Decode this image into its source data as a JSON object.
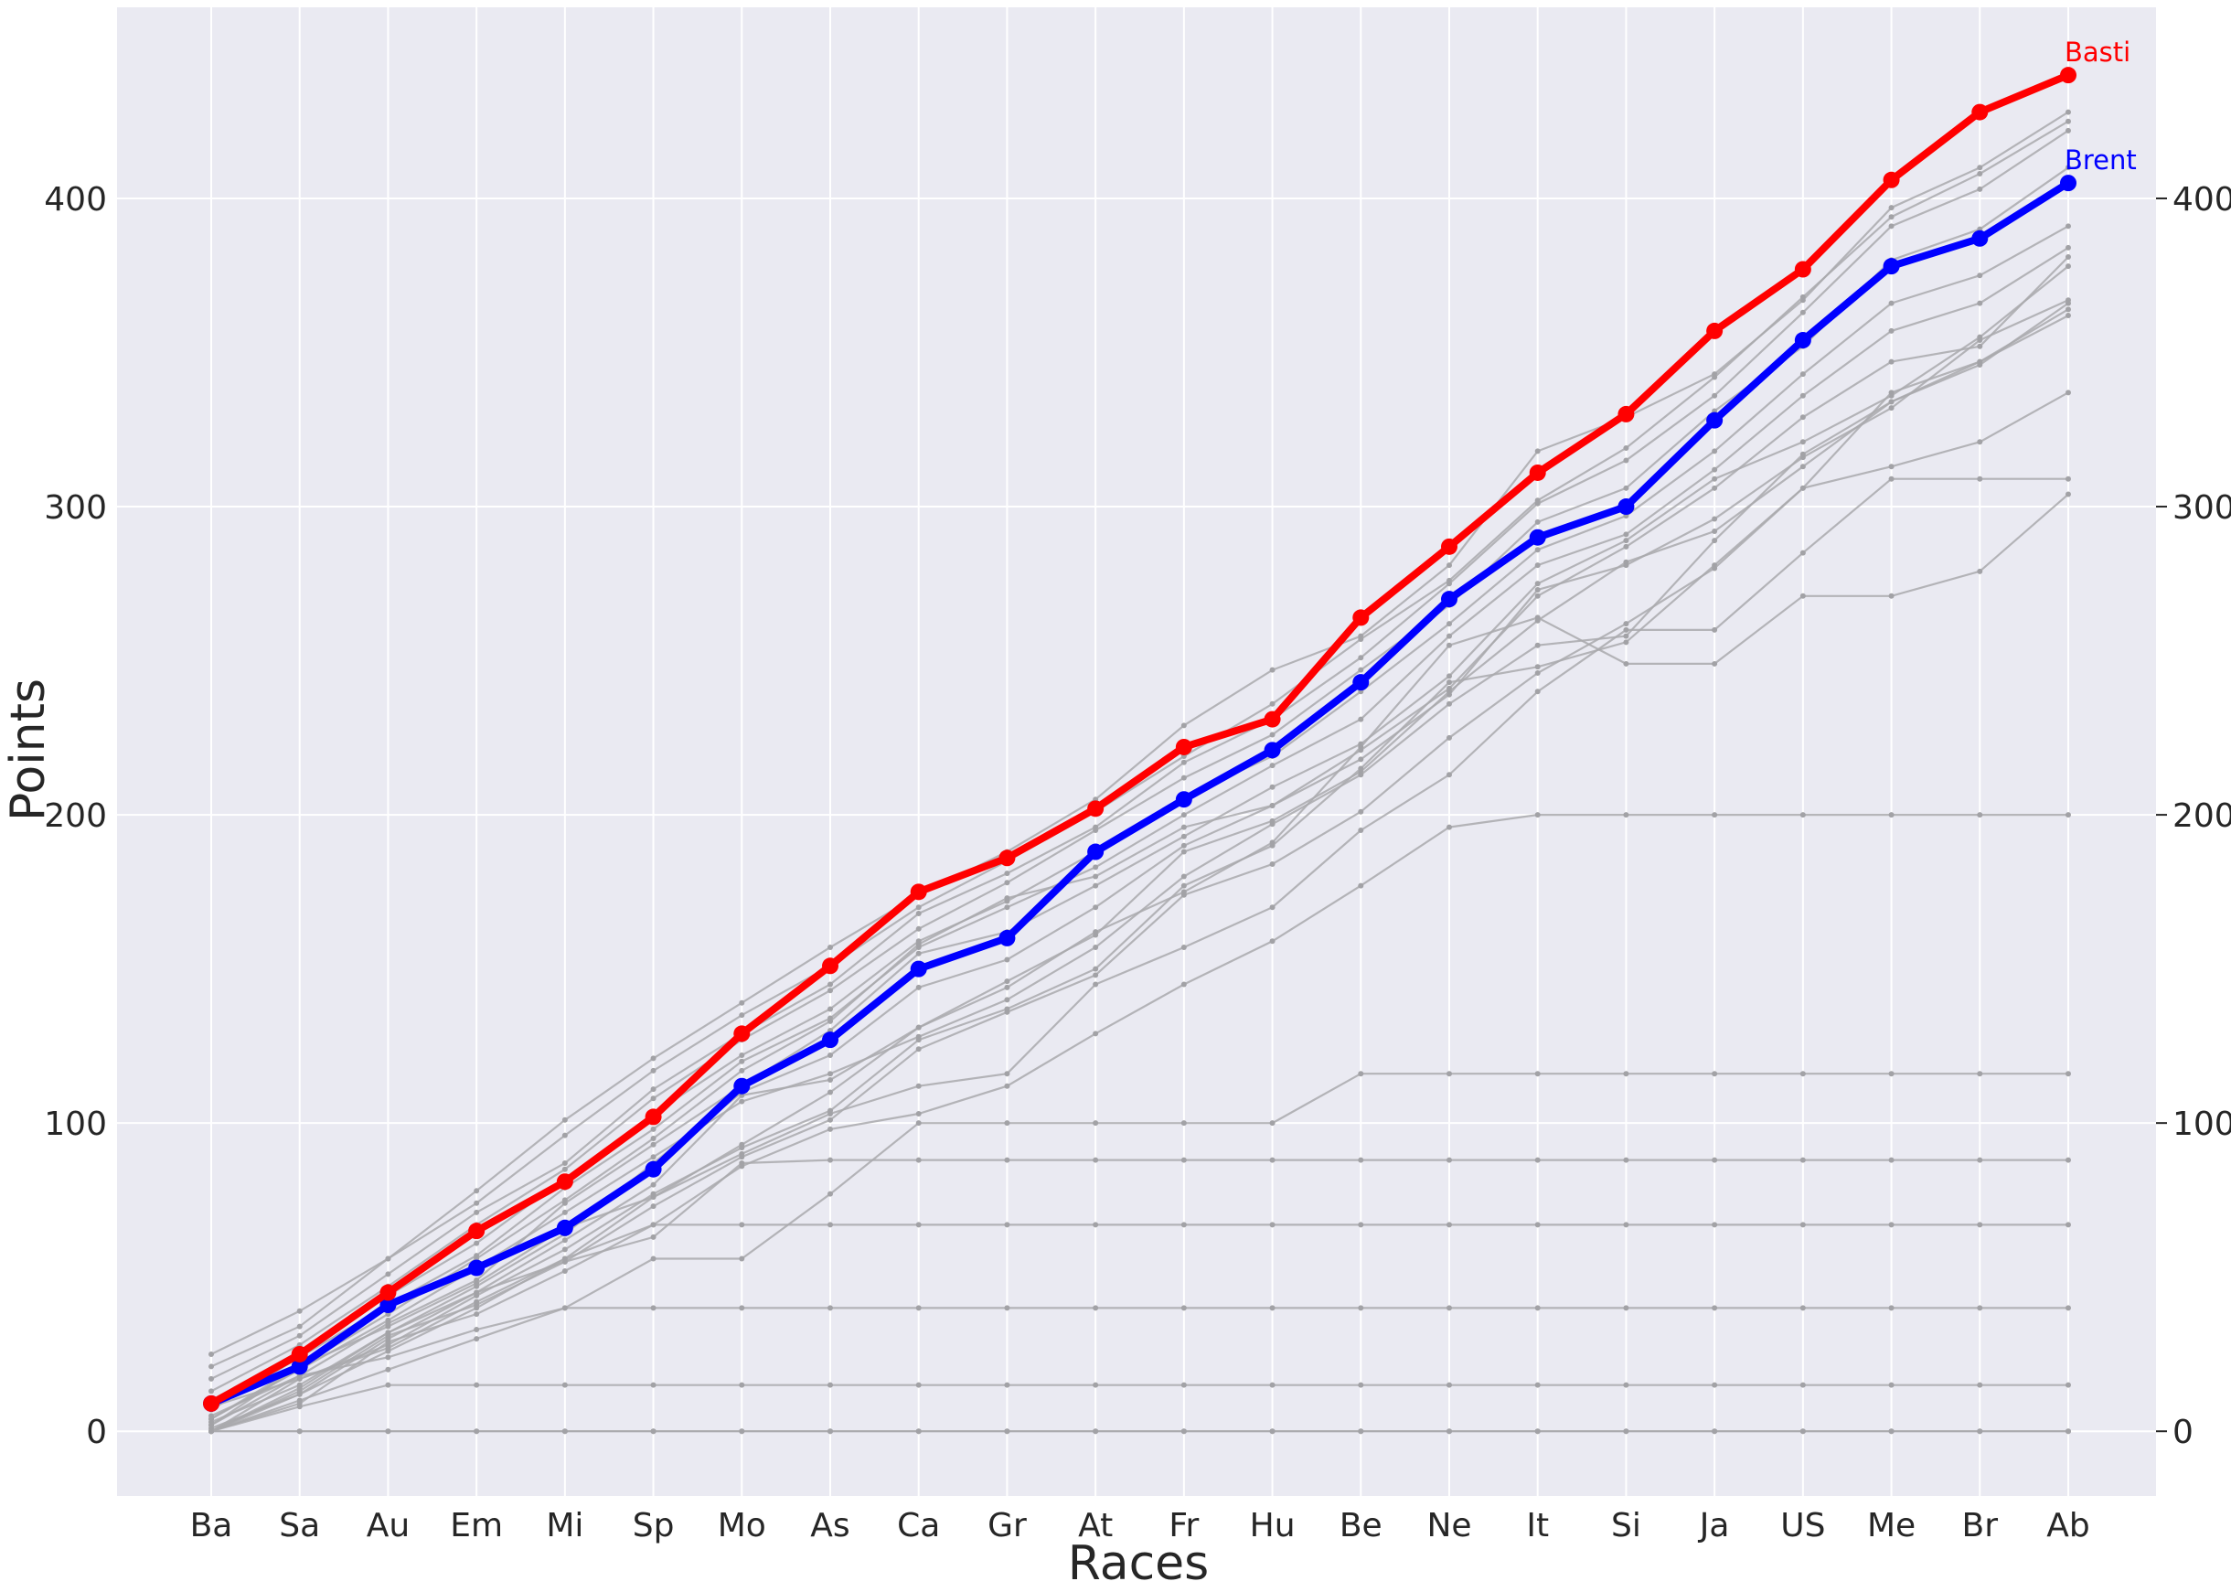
{
  "chart_data": {
    "type": "line",
    "title": "",
    "xlabel": "Races",
    "ylabel": "Points",
    "ylim": [
      -21,
      462
    ],
    "yticks": [
      0,
      100,
      200,
      300,
      400
    ],
    "ytick_labels": [
      "0",
      "100",
      "200",
      "300",
      "400"
    ],
    "categories": [
      "Ba",
      "Sa",
      "Au",
      "Em",
      "Mi",
      "Sp",
      "Mo",
      "As",
      "Ca",
      "Gr",
      "At",
      "Fr",
      "Hu",
      "Be",
      "Ne",
      "It",
      "Si",
      "Ja",
      "US",
      "Me",
      "Br",
      "Ab"
    ],
    "grid": true,
    "right_axis": true,
    "series": [
      {
        "name": "Basti",
        "color": "#ff0000",
        "highlight": true,
        "values": [
          9,
          25,
          45,
          65,
          81,
          102,
          129,
          151,
          175,
          186,
          202,
          222,
          231,
          264,
          287,
          311,
          330,
          357,
          377,
          406,
          428,
          440
        ]
      },
      {
        "name": "Brent",
        "color": "#0000ff",
        "highlight": true,
        "values": [
          9,
          21,
          41,
          53,
          66,
          85,
          112,
          127,
          150,
          160,
          188,
          205,
          221,
          243,
          270,
          290,
          300,
          328,
          354,
          378,
          387,
          405
        ]
      },
      {
        "name": "",
        "values": [
          25,
          39,
          56,
          78,
          101,
          121,
          139,
          157,
          174,
          188,
          205,
          229,
          247,
          258,
          281,
          318,
          329,
          343,
          367,
          397,
          410,
          428
        ]
      },
      {
        "name": "",
        "values": [
          21,
          34,
          56,
          74,
          96,
          117,
          135,
          151,
          170,
          185,
          201,
          219,
          236,
          257,
          276,
          302,
          319,
          342,
          368,
          394,
          408,
          425
        ]
      },
      {
        "name": "",
        "values": [
          17,
          31,
          51,
          71,
          87,
          111,
          129,
          145,
          168,
          181,
          196,
          217,
          231,
          251,
          275,
          301,
          315,
          336,
          363,
          391,
          403,
          422
        ]
      },
      {
        "name": "",
        "values": [
          13,
          28,
          47,
          67,
          85,
          108,
          127,
          143,
          163,
          178,
          195,
          212,
          226,
          247,
          268,
          295,
          306,
          331,
          352,
          380,
          390,
          410
        ]
      },
      {
        "name": "",
        "values": [
          10,
          26,
          44,
          61,
          82,
          103,
          122,
          137,
          159,
          172,
          188,
          206,
          219,
          240,
          262,
          286,
          297,
          318,
          343,
          366,
          375,
          391
        ]
      },
      {
        "name": "",
        "values": [
          7,
          24,
          41,
          57,
          79,
          98,
          120,
          134,
          157,
          170,
          183,
          200,
          216,
          231,
          258,
          281,
          291,
          312,
          336,
          357,
          366,
          384
        ]
      },
      {
        "name": "",
        "values": [
          4,
          21,
          38,
          56,
          75,
          95,
          117,
          133,
          158,
          173,
          180,
          196,
          203,
          221,
          241,
          271,
          287,
          306,
          329,
          347,
          352,
          381
        ]
      },
      {
        "name": "",
        "values": [
          2,
          18,
          35,
          49,
          74,
          93,
          112,
          130,
          155,
          162,
          177,
          193,
          209,
          223,
          245,
          275,
          289,
          309,
          321,
          336,
          355,
          378
        ]
      },
      {
        "name": "",
        "values": [
          0,
          14,
          32,
          47,
          64,
          87,
          110,
          122,
          144,
          153,
          170,
          190,
          203,
          218,
          239,
          273,
          281,
          296,
          316,
          332,
          354,
          367
        ]
      },
      {
        "name": "",
        "values": [
          0,
          12,
          30,
          45,
          62,
          80,
          109,
          114,
          131,
          146,
          161,
          188,
          198,
          214,
          240,
          263,
          282,
          292,
          313,
          334,
          346,
          366
        ]
      },
      {
        "name": "",
        "values": [
          4,
          20,
          36,
          53,
          71,
          89,
          107,
          116,
          128,
          140,
          157,
          180,
          197,
          213,
          236,
          255,
          258,
          289,
          317,
          334,
          347,
          364
        ]
      },
      {
        "name": "",
        "values": [
          0,
          17,
          28,
          44,
          59,
          77,
          92,
          104,
          127,
          137,
          150,
          177,
          190,
          215,
          243,
          248,
          256,
          281,
          306,
          337,
          347,
          362
        ]
      },
      {
        "name": "",
        "values": [
          0,
          13,
          31,
          41,
          55,
          73,
          89,
          101,
          124,
          136,
          148,
          174,
          184,
          201,
          225,
          246,
          262,
          280,
          306,
          313,
          321,
          337
        ]
      },
      {
        "name": "",
        "values": [
          8,
          17,
          27,
          42,
          56,
          76,
          90,
          103,
          112,
          116,
          145,
          157,
          170,
          195,
          213,
          240,
          260,
          260,
          285,
          309,
          309,
          309
        ]
      },
      {
        "name": "",
        "values": [
          2,
          21,
          34,
          48,
          66,
          76,
          93,
          110,
          131,
          144,
          162,
          175,
          191,
          222,
          255,
          264,
          249,
          249,
          271,
          271,
          279,
          304
        ]
      },
      {
        "name": "",
        "values": [
          5,
          18,
          24,
          33,
          40,
          56,
          56,
          77,
          100,
          100,
          100,
          100,
          100,
          116,
          116,
          116,
          116,
          116,
          116,
          116,
          116,
          116
        ]
      },
      {
        "name": "",
        "values": [
          0,
          9,
          29,
          38,
          52,
          67,
          86,
          98,
          103,
          112,
          129,
          145,
          159,
          177,
          196,
          200,
          200,
          200,
          200,
          200,
          200,
          200
        ]
      },
      {
        "name": "",
        "values": [
          3,
          15,
          32,
          45,
          55,
          63,
          87,
          88,
          88,
          88,
          88,
          88,
          88,
          88,
          88,
          88,
          88,
          88,
          88,
          88,
          88,
          88
        ]
      },
      {
        "name": "",
        "values": [
          1,
          12,
          26,
          40,
          56,
          67,
          67,
          67,
          67,
          67,
          67,
          67,
          67,
          67,
          67,
          67,
          67,
          67,
          67,
          67,
          67,
          67
        ]
      },
      {
        "name": "",
        "values": [
          0,
          10,
          20,
          30,
          40,
          40,
          40,
          40,
          40,
          40,
          40,
          40,
          40,
          40,
          40,
          40,
          40,
          40,
          40,
          40,
          40,
          40
        ]
      },
      {
        "name": "",
        "values": [
          0,
          8,
          15,
          15,
          15,
          15,
          15,
          15,
          15,
          15,
          15,
          15,
          15,
          15,
          15,
          15,
          15,
          15,
          15,
          15,
          15,
          15
        ]
      },
      {
        "name": "",
        "values": [
          0,
          0,
          0,
          0,
          0,
          0,
          0,
          0,
          0,
          0,
          0,
          0,
          0,
          0,
          0,
          0,
          0,
          0,
          0,
          0,
          0,
          0
        ]
      },
      {
        "name": "",
        "values": [
          0,
          0,
          0,
          0,
          0,
          0,
          0,
          0,
          0,
          0,
          0,
          0,
          0,
          0,
          0,
          0,
          0,
          0,
          0,
          0,
          0,
          0
        ]
      }
    ]
  }
}
